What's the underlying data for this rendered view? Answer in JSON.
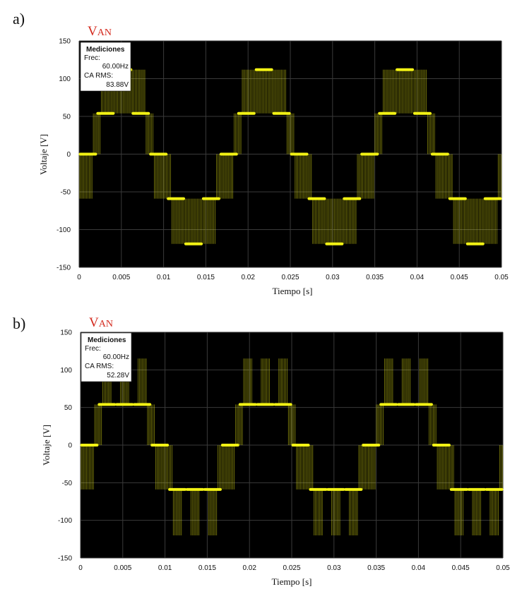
{
  "chart_data": [
    {
      "type": "line",
      "panel_label": "a)",
      "title": "VAN",
      "title_main": "V",
      "title_small": "AN",
      "xlabel": "Tiempo [s]",
      "ylabel": "Voltaje [V]",
      "xlim": [
        0,
        0.05
      ],
      "ylim": [
        -150,
        150
      ],
      "xticks": [
        "0",
        "0.005",
        "0.01",
        "0.015",
        "0.02",
        "0.025",
        "0.03",
        "0.035",
        "0.04",
        "0.045",
        "0.05"
      ],
      "yticks": [
        "150",
        "100",
        "50",
        "0",
        "-50",
        "-100",
        "-150"
      ],
      "grid": true,
      "background": "#000000",
      "trace_color": "#f2f214",
      "period": 0.01667,
      "levels": [
        0,
        54,
        112,
        54,
        0,
        -59,
        -119,
        -59
      ],
      "measurements": {
        "header": "Mediciones",
        "freq_label": "Frec:",
        "freq_value": "60.00Hz",
        "rms_label": "CA RMS:",
        "rms_value": "83.88V"
      }
    },
    {
      "type": "line",
      "panel_label": "b)",
      "title": "VAN",
      "title_main": "V",
      "title_small": "AN",
      "xlabel": "Tiempo [s]",
      "ylabel": "Voltaje [V]",
      "xlim": [
        0,
        0.05
      ],
      "ylim": [
        -150,
        150
      ],
      "xticks": [
        "0",
        "0.005",
        "0.01",
        "0.015",
        "0.02",
        "0.025",
        "0.03",
        "0.035",
        "0.04",
        "0.045",
        "0.05"
      ],
      "yticks": [
        "150",
        "100",
        "50",
        "0",
        "-50",
        "-100",
        "-150"
      ],
      "grid": true,
      "background": "#000000",
      "trace_color": "#f2f214",
      "period": 0.01667,
      "levels": [
        0,
        54,
        54,
        54,
        0,
        -59,
        -59,
        -59
      ],
      "peak": [
        115,
        -120
      ],
      "measurements": {
        "header": "Mediciones",
        "freq_label": "Frec:",
        "freq_value": "60.00Hz",
        "rms_label": "CA RMS:",
        "rms_value": "52.28V"
      }
    }
  ]
}
